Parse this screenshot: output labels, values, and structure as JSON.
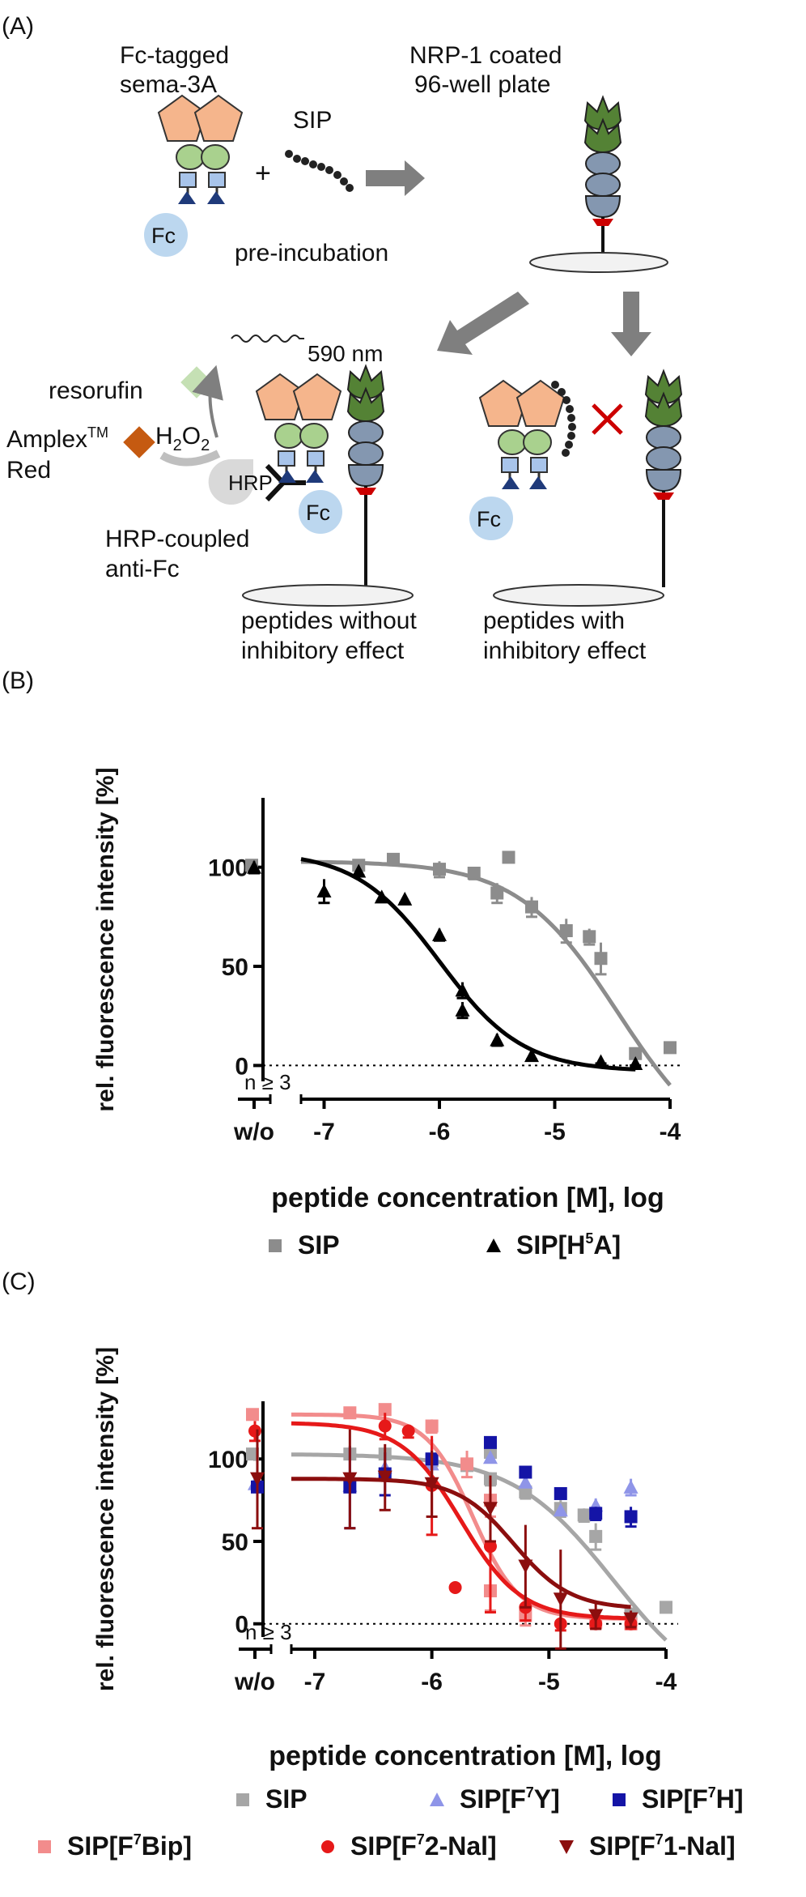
{
  "panel_a": {
    "panel_label": "(A)",
    "fc_tagged_line1": "Fc-tagged",
    "fc_tagged_line2": "sema-3A",
    "sip": "SIP",
    "nrp_line1": "NRP-1 coated",
    "nrp_line2": "96-well plate",
    "fc": "Fc",
    "preincubation": "pre-incubation",
    "wavelength": "590 nm",
    "resorufin": "resorufin",
    "amplex_main": "Amplex",
    "amplex_tm": "TM",
    "amplex_red": "Red",
    "h2o2_h": "H",
    "h2o2_sub": "2",
    "h2o2_o": "O",
    "hrp": "HRP",
    "hrp_coupled_line1": "HRP-coupled",
    "hrp_coupled_line2": "anti-Fc",
    "no_effect_line1": "peptides without",
    "no_effect_line2": "inhibitory effect",
    "with_effect_line1": "peptides with",
    "with_effect_line2": "inhibitory effect"
  },
  "panel_b": {
    "panel_label": "(B)"
  },
  "panel_c": {
    "panel_label": "(C)"
  },
  "chart_data": [
    {
      "type": "scatter",
      "panel": "B",
      "ylabel": "rel. fluorescence intensity [%]",
      "xlabel": "peptide concentration [M], log",
      "xlim": [
        -7.2,
        -4
      ],
      "ylim": [
        -8,
        135
      ],
      "xticks": [
        -7,
        -6,
        -5,
        -4
      ],
      "xtick_labels": [
        "-7",
        "-6",
        "-5",
        "-4"
      ],
      "yticks": [
        0,
        50,
        100
      ],
      "ytick_labels": [
        "0",
        "50",
        "100"
      ],
      "control_label": "w/o",
      "n_label": "n ≥ 3",
      "zero_line": "dotted",
      "legend_position": "bottom",
      "series": [
        {
          "name": "SIP",
          "superscript": "",
          "name_tail": "",
          "color": "#8c8c8c",
          "marker": "square",
          "control": {
            "y": 101,
            "err": 2
          },
          "points": [
            {
              "x": -6.7,
              "y": 101,
              "err": 1
            },
            {
              "x": -6.4,
              "y": 104,
              "err": 1
            },
            {
              "x": -6.0,
              "y": 99,
              "err": 4
            },
            {
              "x": -5.7,
              "y": 97,
              "err": 3
            },
            {
              "x": -5.4,
              "y": 105,
              "err": 0
            },
            {
              "x": -5.5,
              "y": 87,
              "err": 5
            },
            {
              "x": -5.2,
              "y": 80,
              "err": 5
            },
            {
              "x": -4.9,
              "y": 68,
              "err": 6
            },
            {
              "x": -4.7,
              "y": 65,
              "err": 4
            },
            {
              "x": -4.6,
              "y": 54,
              "err": 8
            },
            {
              "x": -4.3,
              "y": 6,
              "err": 0
            },
            {
              "x": -4.0,
              "y": 9,
              "err": 0
            }
          ],
          "curve": {
            "top": 103,
            "bottom": -50,
            "logIC50": -4.45,
            "hill": 1.0,
            "x_from": -7.2,
            "x_to": -4.0
          }
        },
        {
          "name": "SIP[H",
          "superscript": "5",
          "name_tail": "A]",
          "color": "#000000",
          "marker": "triangle",
          "control": {
            "y": 100,
            "err": 3
          },
          "points": [
            {
              "x": -7.0,
              "y": 88,
              "err": 6
            },
            {
              "x": -6.7,
              "y": 98,
              "err": 2
            },
            {
              "x": -6.5,
              "y": 85,
              "err": 2
            },
            {
              "x": -6.3,
              "y": 84,
              "err": 2
            },
            {
              "x": -6.0,
              "y": 66,
              "err": 3
            },
            {
              "x": -5.8,
              "y": 38,
              "err": 4
            },
            {
              "x": -5.8,
              "y": 28,
              "err": 4
            },
            {
              "x": -5.5,
              "y": 13,
              "err": 3
            },
            {
              "x": -5.2,
              "y": 5,
              "err": 2
            },
            {
              "x": -4.6,
              "y": 2,
              "err": 1
            },
            {
              "x": -4.3,
              "y": 1,
              "err": 1
            }
          ],
          "curve": {
            "top": 108,
            "bottom": -3,
            "logIC50": -6.0,
            "hill": 1.2,
            "x_from": -7.2,
            "x_to": -4.3
          }
        }
      ]
    },
    {
      "type": "scatter",
      "panel": "C",
      "ylabel": "rel. fluorescence intensity [%]",
      "xlabel": "peptide concentration [M], log",
      "xlim": [
        -7.2,
        -4
      ],
      "ylim": [
        -8,
        135
      ],
      "xticks": [
        -7,
        -6,
        -5,
        -4
      ],
      "xtick_labels": [
        "-7",
        "-6",
        "-5",
        "-4"
      ],
      "yticks": [
        0,
        50,
        100
      ],
      "ytick_labels": [
        "0",
        "50",
        "100"
      ],
      "control_label": "w/o",
      "n_label": "n ≥ 3",
      "zero_line": "dotted",
      "legend_position": "bottom",
      "series": [
        {
          "name": "SIP",
          "superscript": "",
          "name_tail": "",
          "color": "#a6a6a6",
          "marker": "square",
          "control": {
            "y": 103,
            "err": 2
          },
          "points": [
            {
              "x": -6.7,
              "y": 103,
              "err": 1
            },
            {
              "x": -6.4,
              "y": 103,
              "err": 2
            },
            {
              "x": -6.0,
              "y": 99,
              "err": 3
            },
            {
              "x": -5.7,
              "y": 96,
              "err": 2
            },
            {
              "x": -5.5,
              "y": 104,
              "err": 2
            },
            {
              "x": -5.5,
              "y": 88,
              "err": 4
            },
            {
              "x": -5.2,
              "y": 80,
              "err": 4
            },
            {
              "x": -4.9,
              "y": 70,
              "err": 5
            },
            {
              "x": -4.7,
              "y": 66,
              "err": 4
            },
            {
              "x": -4.6,
              "y": 53,
              "err": 8
            },
            {
              "x": -4.3,
              "y": 6,
              "err": 0
            },
            {
              "x": -4.0,
              "y": 10,
              "err": 0
            }
          ],
          "curve": {
            "top": 103,
            "bottom": -50,
            "logIC50": -4.45,
            "hill": 1.0,
            "x_from": -7.2,
            "x_to": -4.0
          }
        },
        {
          "name": "SIP[F",
          "superscript": "7",
          "name_tail": "Y]",
          "color": "#8f95e8",
          "marker": "triangle",
          "control": {
            "y": 85,
            "err": 3
          },
          "points": [
            {
              "x": -6.7,
              "y": 84,
              "err": 4
            },
            {
              "x": -6.4,
              "y": 95,
              "err": 3
            },
            {
              "x": -6.0,
              "y": 97,
              "err": 3
            },
            {
              "x": -5.5,
              "y": 101,
              "err": 3
            },
            {
              "x": -5.2,
              "y": 86,
              "err": 3
            },
            {
              "x": -4.9,
              "y": 69,
              "err": 3
            },
            {
              "x": -4.6,
              "y": 72,
              "err": 4
            },
            {
              "x": -4.3,
              "y": 83,
              "err": 5
            }
          ]
        },
        {
          "name": "SIP[F",
          "superscript": "7",
          "name_tail": "H]",
          "color": "#1414a6",
          "marker": "square",
          "control": {
            "y": 83,
            "err": 3
          },
          "points": [
            {
              "x": -6.7,
              "y": 83,
              "err": 25
            },
            {
              "x": -6.4,
              "y": 91,
              "err": 13
            },
            {
              "x": -6.0,
              "y": 100,
              "err": 12
            },
            {
              "x": -5.5,
              "y": 110,
              "err": 3
            },
            {
              "x": -5.2,
              "y": 92,
              "err": 3
            },
            {
              "x": -4.9,
              "y": 79,
              "err": 3
            },
            {
              "x": -4.6,
              "y": 67,
              "err": 4
            },
            {
              "x": -4.3,
              "y": 65,
              "err": 6
            }
          ]
        },
        {
          "name": "SIP[F",
          "superscript": "7",
          "name_tail": "Bip]",
          "color": "#f28c8c",
          "marker": "square",
          "control": {
            "y": 127,
            "err": 2
          },
          "points": [
            {
              "x": -6.7,
              "y": 128,
              "err": 2
            },
            {
              "x": -6.4,
              "y": 130,
              "err": 3
            },
            {
              "x": -6.0,
              "y": 120,
              "err": 4
            },
            {
              "x": -5.7,
              "y": 97,
              "err": 8
            },
            {
              "x": -5.5,
              "y": 75,
              "err": 10
            },
            {
              "x": -5.5,
              "y": 20,
              "err": 12
            },
            {
              "x": -5.2,
              "y": 5,
              "err": 6
            },
            {
              "x": -4.6,
              "y": 1,
              "err": 3
            },
            {
              "x": -4.3,
              "y": 0,
              "err": 3
            }
          ],
          "curve": {
            "top": 127,
            "bottom": 3,
            "logIC50": -5.65,
            "hill": 2.2,
            "x_from": -7.2,
            "x_to": -4.3
          }
        },
        {
          "name": "SIP[F",
          "superscript": "7",
          "name_tail": "2-Nal]",
          "color": "#e61919",
          "marker": "circle",
          "control": {
            "y": 117,
            "err": 6
          },
          "points": [
            {
              "x": -6.4,
              "y": 120,
              "err": 8
            },
            {
              "x": -6.2,
              "y": 117,
              "err": 4
            },
            {
              "x": -6.0,
              "y": 84,
              "err": 30
            },
            {
              "x": -5.8,
              "y": 22,
              "err": 0
            },
            {
              "x": -5.5,
              "y": 47,
              "err": 40
            },
            {
              "x": -5.2,
              "y": 10,
              "err": 8
            },
            {
              "x": -4.9,
              "y": 0,
              "err": 4
            },
            {
              "x": -4.6,
              "y": 0,
              "err": 3
            },
            {
              "x": -4.3,
              "y": 0,
              "err": 3
            }
          ],
          "curve": {
            "top": 122,
            "bottom": 3,
            "logIC50": -5.75,
            "hill": 1.7,
            "x_from": -7.2,
            "x_to": -4.3
          }
        },
        {
          "name": "SIP[F",
          "superscript": "7",
          "name_tail": "1-Nal]",
          "color": "#8b0e0e",
          "marker": "triangle-down",
          "control": {
            "y": 88,
            "err": 30
          },
          "points": [
            {
              "x": -6.7,
              "y": 88,
              "err": 30
            },
            {
              "x": -6.4,
              "y": 89,
              "err": 20
            },
            {
              "x": -6.0,
              "y": 85,
              "err": 20
            },
            {
              "x": -5.5,
              "y": 70,
              "err": 20
            },
            {
              "x": -5.2,
              "y": 35,
              "err": 25
            },
            {
              "x": -4.9,
              "y": 15,
              "err": 30
            },
            {
              "x": -4.6,
              "y": 5,
              "err": 8
            },
            {
              "x": -4.3,
              "y": 3,
              "err": 5
            }
          ],
          "curve": {
            "top": 88,
            "bottom": 9,
            "logIC50": -5.3,
            "hill": 1.8,
            "x_from": -7.2,
            "x_to": -4.3
          }
        }
      ]
    }
  ]
}
